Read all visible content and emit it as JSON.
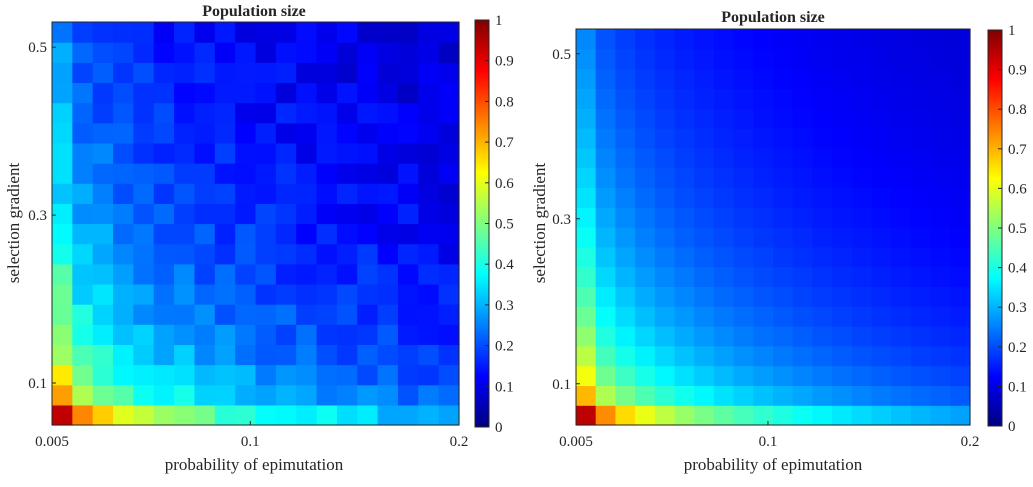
{
  "chart_data": [
    {
      "type": "heatmap",
      "title": "Population size",
      "xlabel": "probability of epimutation",
      "ylabel": "selection gradient",
      "x_ticks": [
        "0.005",
        "0.1",
        "0.2"
      ],
      "y_ticks": [
        "0.1",
        "0.3",
        "0.5"
      ],
      "colorbar_ticks": [
        "0",
        "0.1",
        "0.2",
        "0.3",
        "0.4",
        "0.5",
        "0.6",
        "0.7",
        "0.8",
        "0.9",
        "1"
      ],
      "colormap": "jet",
      "xlim": [
        0.005,
        0.2
      ],
      "ylim": [
        0.05,
        0.53
      ],
      "clim": [
        0,
        1
      ],
      "grid_cols": 20,
      "grid_rows": 20,
      "noisy": true,
      "description_values": "values decrease with both probability of epimutation and selection gradient; ~0.92 at bottom-left, ~0.05 at top-right"
    },
    {
      "type": "heatmap",
      "title": "Population size",
      "xlabel": "probability of epimutation",
      "ylabel": "selection gradient",
      "x_ticks": [
        "0.005",
        "0.1",
        "0.2"
      ],
      "y_ticks": [
        "0.1",
        "0.3",
        "0.5"
      ],
      "colorbar_ticks": [
        "0",
        "0.1",
        "0.2",
        "0.3",
        "0.4",
        "0.5",
        "0.6",
        "0.7",
        "0.8",
        "0.9",
        "1"
      ],
      "colormap": "jet",
      "xlim": [
        0.005,
        0.2
      ],
      "ylim": [
        0.05,
        0.53
      ],
      "clim": [
        0,
        1
      ],
      "grid_cols": 20,
      "grid_rows": 20,
      "noisy": false
    }
  ]
}
